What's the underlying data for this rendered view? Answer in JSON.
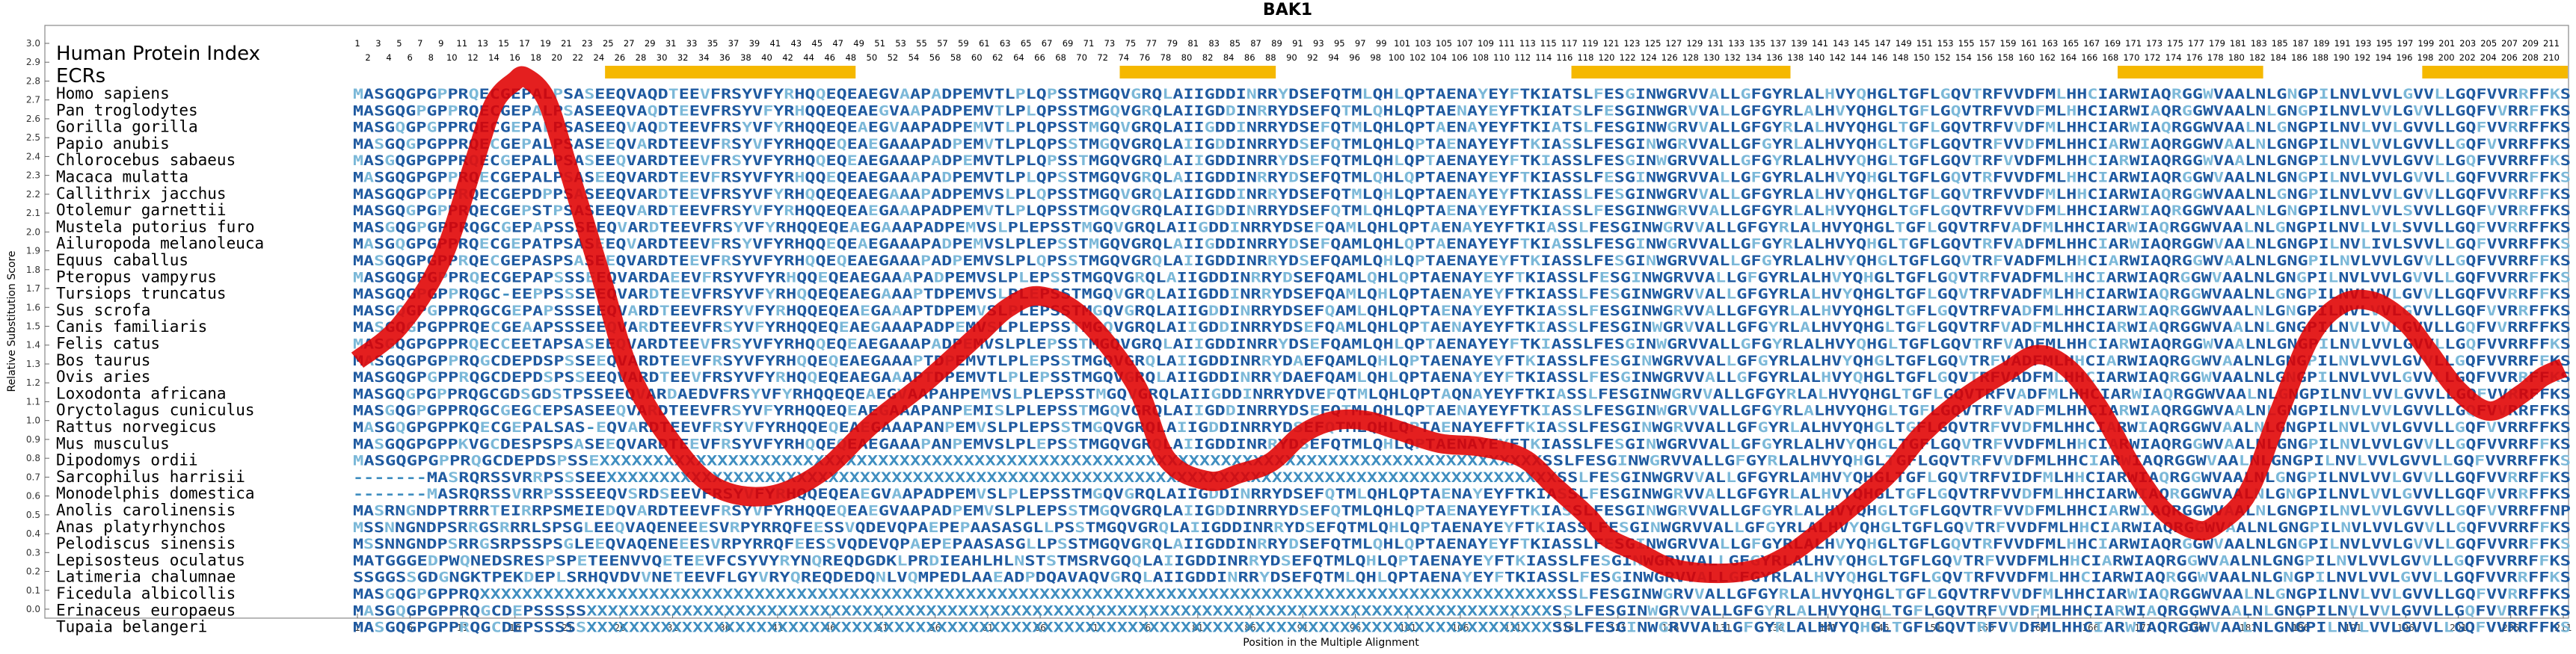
{
  "chart_data": {
    "type": "line",
    "title": "BAK1",
    "xlabel": "Position in the Multiple Alignment",
    "ylabel": "Relative Substitution Score",
    "xlim": [
      1,
      211
    ],
    "ylim": [
      0.0,
      3.0
    ],
    "yticks": [
      "0.0",
      "0.1",
      "0.2",
      "0.3",
      "0.4",
      "0.5",
      "0.6",
      "0.7",
      "0.8",
      "0.9",
      "1.0",
      "1.1",
      "1.2",
      "1.3",
      "1.4",
      "1.5",
      "1.6",
      "1.7",
      "1.8",
      "1.9",
      "2.0",
      "2.1",
      "2.2",
      "2.3",
      "2.4",
      "2.5",
      "2.6",
      "2.7",
      "2.8",
      "2.9",
      "3.0"
    ],
    "xticks": [
      1,
      6,
      11,
      16,
      21,
      26,
      31,
      36,
      41,
      46,
      51,
      56,
      61,
      66,
      71,
      76,
      81,
      86,
      91,
      96,
      101,
      106,
      111,
      116,
      121,
      126,
      131,
      136,
      141,
      146,
      151,
      156,
      161,
      166,
      171,
      176,
      181,
      186,
      191,
      196,
      201,
      206,
      211
    ],
    "human_protein_index_label": "Human Protein Index",
    "index_row_odd": [
      "1",
      "3",
      "5",
      "7",
      "9",
      "11",
      "13",
      "15",
      "17",
      "19",
      "21",
      "23",
      "25",
      "27",
      "29",
      "31",
      "33",
      "35",
      "37",
      "39",
      "41",
      "43",
      "45",
      "47",
      "49",
      "51",
      "53",
      "55",
      "57",
      "59",
      "61",
      "63",
      "65",
      "67",
      "69",
      "71",
      "73",
      "75",
      "77",
      "79",
      "81",
      "83",
      "85",
      "87",
      "89",
      "91",
      "93",
      "95",
      "97",
      "99",
      "101",
      "103",
      "105",
      "107",
      "109",
      "111",
      "113",
      "115",
      "117",
      "119",
      "121",
      "123",
      "125",
      "127",
      "129",
      "131",
      "133",
      "135",
      "137",
      "139",
      "141",
      "143",
      "145",
      "147",
      "149",
      "151",
      "153",
      "155",
      "157",
      "159",
      "161",
      "163",
      "165",
      "167",
      "169",
      "171",
      "173",
      "175",
      "177",
      "179",
      "181",
      "183",
      "185",
      "187",
      "189",
      "191",
      "193",
      "195",
      "197",
      "199",
      "201",
      "203",
      "205",
      "207",
      "209",
      "211"
    ],
    "index_row_even": [
      "2",
      "4",
      "6",
      "8",
      "10",
      "12",
      "14",
      "16",
      "18",
      "20",
      "22",
      "24",
      "26",
      "28",
      "30",
      "32",
      "34",
      "36",
      "38",
      "40",
      "42",
      "44",
      "46",
      "48",
      "50",
      "52",
      "54",
      "56",
      "58",
      "60",
      "62",
      "64",
      "66",
      "68",
      "70",
      "72",
      "74",
      "76",
      "78",
      "80",
      "82",
      "84",
      "86",
      "88",
      "90",
      "92",
      "94",
      "96",
      "98",
      "100",
      "102",
      "104",
      "106",
      "108",
      "110",
      "112",
      "114",
      "116",
      "118",
      "120",
      "122",
      "124",
      "126",
      "128",
      "130",
      "132",
      "134",
      "136",
      "138",
      "140",
      "142",
      "144",
      "146",
      "148",
      "150",
      "152",
      "154",
      "156",
      "158",
      "160",
      "162",
      "164",
      "166",
      "168",
      "170",
      "172",
      "174",
      "176",
      "178",
      "180",
      "182",
      "184",
      "186",
      "188",
      "190",
      "192",
      "194",
      "196",
      "198",
      "200",
      "202",
      "204",
      "206",
      "208",
      "210"
    ],
    "ecrs_label": "ECRs",
    "ecr_regions": [
      [
        25,
        48
      ],
      [
        74,
        88
      ],
      [
        117,
        137
      ],
      [
        169,
        182
      ],
      [
        198,
        211
      ]
    ],
    "ecr_color": "#f5b800",
    "line_color": "#e00000",
    "x": [
      1,
      5,
      9,
      12,
      14,
      16,
      17,
      19,
      21,
      24,
      27,
      31,
      35,
      40,
      45,
      50,
      55,
      60,
      63,
      66,
      70,
      75,
      78,
      82,
      85,
      88,
      91,
      94,
      97,
      100,
      104,
      108,
      112,
      115,
      118,
      120,
      123,
      126,
      130,
      134,
      137,
      140,
      144,
      147,
      150,
      154,
      158,
      161,
      164,
      167,
      170,
      173,
      176,
      178,
      181,
      184,
      187,
      190,
      193,
      196,
      198,
      201,
      204,
      207,
      209,
      211
    ],
    "y": [
      1.32,
      1.5,
      1.85,
      2.35,
      2.68,
      2.8,
      2.82,
      2.7,
      2.35,
      1.8,
      1.25,
      0.88,
      0.65,
      0.6,
      0.72,
      0.98,
      1.2,
      1.45,
      1.6,
      1.66,
      1.55,
      1.2,
      0.8,
      0.68,
      0.72,
      0.78,
      0.93,
      1.0,
      1.0,
      0.95,
      0.88,
      0.86,
      0.8,
      0.65,
      0.5,
      0.38,
      0.3,
      0.22,
      0.19,
      0.21,
      0.28,
      0.4,
      0.58,
      0.73,
      0.93,
      1.12,
      1.26,
      1.35,
      1.27,
      1.05,
      0.75,
      0.52,
      0.42,
      0.45,
      0.62,
      1.05,
      1.45,
      1.62,
      1.63,
      1.52,
      1.38,
      1.16,
      1.05,
      1.14,
      1.23,
      1.28
    ]
  },
  "species": [
    "Homo sapiens",
    "Pan troglodytes",
    "Gorilla gorilla",
    "Papio anubis",
    "Chlorocebus sabaeus",
    "Macaca mulatta",
    "Callithrix jacchus",
    "Otolemur garnettii",
    "Mustela putorius furo",
    "Ailuropoda melanoleuca",
    "Equus caballus",
    "Pteropus vampyrus",
    "Tursiops truncatus",
    "Sus scrofa",
    "Canis familiaris",
    "Felis catus",
    "Bos taurus",
    "Ovis aries",
    "Loxodonta africana",
    "Oryctolagus cuniculus",
    "Rattus norvegicus",
    "Mus musculus",
    "Dipodomys ordii",
    "Sarcophilus harrisii",
    "Monodelphis domestica",
    "Anolis carolinensis",
    "Anas platyrhynchos",
    "Pelodiscus sinensis",
    "Lepisosteus oculatus",
    "Latimeria chalumnae",
    "Ficedula albicollis",
    "Erinaceus europaeus",
    "Tupaia belangeri"
  ],
  "sequences": [
    "MASGQGPGPPRQECGEPALPSASEEQVAQDTEEVFRSYVFYRHQQEQEAEGVAAPADPEMVTLPLQPSSTMGQVGRQLAIIGDDINRRYDSEFQTMLQHLQPTAENAYEYFTKIATSLFESGINWGRVVALLGFGYRLALHVYQHGLTGFLGQVTRFVVDFMLHHCIARWIAQRGGWVAALNLGNGPILNVLVVLGVVLLGQFVVRRFFKS",
    "MASGQGPGPPRQECGEPALPSASEEQVAQDTEEVFRSYVFYRHQQEQEAEGVAAPADPEMVTLPLQPSSTMGQVGRQLAIIGDDINRRYDSEFQTMLQHLQPTAENAYEYFTKIATSLFESGINWGRVVALLGFGYRLALHVYQHGLTGFLGQVTRFVVDFMLHHCIARWIAQRGGWVAALNLGNGPILNVLVVLGVVLLGQFVVRRFFKS",
    "MASGQGPGPPRQECGEPALPSASEEQVAQDTEEVFRSYVFYRHQQEQEAEGVAAPADPEMVTLPLQPSSTMGQVGRQLAIIGDDINRRYDSEFQTMLQHLQPTAENAYEYFTKIATSLFESGINWGRVVALLGFGYRLALHVYQHGLTGFLGQVTRFVVDFMLHHCIARWIAQRGGWVAALNLGNGPILNVLVVLGVVLLGQFVVRRFFKS",
    "MASGQGPGPPRQECGEPALPSASEEQVARDTEEVFRSYVFYRHQQEQEAEGAAAPADPEMVTLPLQPSSTMGQVGRQLAIIGDDINRRYDSEFQTMLQHLQPTAENAYEYFTKIASSLFESGINWGRVVALLGFGYRLALHVYQHGLTGFLGQVTRFVVDFMLHHCIARWIAQRGGWVAALNLGNGPILNVLVVLGVVLLGQFVVRRFFKS",
    "MASGQGPGPPRQECGEPALPSASEEQVARDTEEVFRSYVFYRHQQEQEAEGAAAPADPEMVTLPLQPSSTMGQVGRQLAIIGDDINRRYDSEFQTMLQHLQPTAENAYEYFTKIASSLFESGINWGRVVALLGFGYRLALHVYQHGLTGFLGQVTRFVVDFMLHHCIARWIAQRGGWVAALNLGNGPILNVLVVLGVVLLGQFVVRRFFKS",
    "MASGQGPGPPRQECGEPALPSASEEQVARDTEEVFRSYVFYRHQQEQEAEGAAAPADPEMVTLPLQPSSTMGQVGRQLAIIGDDINRRYDSEFQTMLQHLQPTAENAYEYFTKIASSLFESGINWGRVVALLGFGYRLALHVYQHGLTGFLGQVTRFVVDFMLHHCIARWIAQRGGWVAALNLGNGPILNVLVVLGVVLLGQFVVRRFFKS",
    "MASGQGPGPPRQECGEPDPPSASEEQVARDTEEVFRSYVFYRHQQEQEAEGAAAPADPEMVSLPLQPSSTMGQVGRQLAIIGDDINRRYDSEFQTMLQHLQPTAENAYEYFTKIASSLFESGINWGRVVALLGFGYRLALHVYQHGLTGFLGQVTRFVVDFMLHHCIARWIAQRGGWVAALNLGNGPILNVLVVLGVVLLGQFVVRRFFKS",
    "MASGQGPGPPRQECGEPSTPSASEEQVARDTEEVFRSYVFYRHQQEQEAEGAAAPADPEMVTLPLQPSSTMGQVGRQLAIIGDDINRRYDSEFQTMLQHLQPTAENAYEYFTKIASSLFESGINWGRVVALLGFGYRLALHVYQHGLTGFLGQVTRFVVDFMLHHCIARWIAQRGGWVAALNLGNGPILNVLVVLSVVLLGQFVVRRFFKS",
    "MASGQGPGPPRQGCGEPAPSSSEEQVARDTEEVFRSYVFYRHQQEQEAEGAAAPADPEMVSLPLEPSSTMGQVGRQLAIIGDDINRRYDSEFQAMLQHLQPTAENAYEYFTKIASSLFESGINWGRVVALLGFGYRLALHVYQHGLTGFLGQVTRFVADFMLHHCIARWIAQRGGWVAALNLGNGPILNVLLVLSVVLLGQFVVRRFFKS",
    "MASGQGPGPPRQECGEPATPSASEEQVARDTEEVFRSYVFYRHQQEQEAEGAAAPADPEMVSLPLEPSSTMGQVGRQLAIIGDDINRRYDSEFQAMLQHLQPTAENAYEYFTKIASSLFESGINWGRVVALLGFGYRLALHVYQHGLTGFLGQVTRFVADFMLHHCIARWIAQRGGWVAALNLGNGPILNVLIVLSVVLLGQFVVRRFFKS",
    "MASGQGPGPPRQECGEPASPSASEEQVARDTEEVFRSYVFYRHQQEQEAEGAAAPADPEMVSLPLQPSSTMGQVGRQLAIIGDDINRRYDSEFQAMLQHLQPTAENAYEYFTKIASSLFESGINWGRVVALLGFGYRLALHVYQHGLTGFLGQVTRFVADFMLHHCIARWIAQRGGWVAALNLGNGPILNVLVVLGVVLLGQFVVRRFFKS",
    "MASGQGPGPPRQECGEPAPSSSEEQVARDAEEVFRSYVFYRHQQEQEAEGAAAPADPEMVSLPLEPSSTMGQVGRQLAIIGDDINRRYDSEFQAMLQHLQPTAENAYEYFTKIASSLFESGINWGRVVALLGFGYRLALHVYQHGLTGFLGQVTRFVADFMLHHCIARWIAQRGGWVAALNLGNGPILNVLVVLGVVLLGQFVVRRFFKS",
    "MASGQGPGPPRQGC-EEPPSSSEEQVARDTEEVFRSYVFYRHQQEQEAEGAAAPTDPEMVSLPLEPSSTMGQVGRQLAIIGDDINRRYDSEFQAMLQHLQPTAENAYEYFTKIASSLFESGINWGRVVALLGFGYRLALHVYQHGLTGFLGQVTRFVADFMLHHCIARWIAQRGGWVAALNLGNGPILNVLVVLGVVLLGQFVVRRFFKS",
    "MASGQGPGPPRQGCGEPAPSSSEEQVARDTEEVFRSYVFYRHQQEQEAEGAAAPTDPEMVSLPLEPSSTMGQVGRQLAIIGDDINRRYDSEFQAMLQHLQPTAENAYEYFTKIASSLFESGINWGRVVALLGFGYRLALHVYQHGLTGFLGQVTRFVADFMLHHCIARWIAQRGGWVAALNLGNGPILNVLVVLGVVLLGQFVVRRFFKS",
    "MASGQGPGPPRQECGEAAPSSSEEQVARDTEEVFRSYVFYRHQQEQEAEGAAAPADPEMVSLPLEPSSTMGQVGRQLAIIGDDINRRYDSEFQAMLQHLQPTAENAYEYFTKIASSLFESGINWGRVVALLGFGYRLALHVYQHGLTGFLGQVTRFVADFMLHHCIARWIAQRGGWVAALNLGNGPILNVLVVLGVVLLGQFVVRRFFKS",
    "MASGQGPGPPRQECCEETAPSASEEQVARDTEEVFRSYVFYRHQQEQEAEGAAAPADPEMVSLPLEPSSTMGQVGRQLAIIGDDINRRYDSEFQAMLQHLQPTAENAYEYFTKIASSLFESGINWGRVVALLGFGYRLALHVYQHGLTGFLGQVTRFVADFMLHHCIARWIAQRGGWVAALNLGNGPILNVLVVLGVVLLGQFVVRRFFKS",
    "MASGQGPGPPRQGCDEPDSPSSEEQVARDTEEVFRSYVFYRHQQEQEAEGAAAPTDPEMVTLPLEPSSTMGQVGRQLAIIGDDINRRYDAEFQAMLQHLQPTAENAYEYFTKIASSLFESGINWGRVVALLGFGYRLALHVYQHGLTGFLGQVTRFVADFMLHHCIARWIAQRGGWVAALNLGNGPILNVLVVLGVVLLGQFVVRRFFKS",
    "MASGQGPGPPRQGCDEPDSPSSEEQVARDTEEVFRSYVFYRHQQEQEAEGAAAPTDPEMVTLPLEPSSTMGQVGRQLAIIGDDINRRYDAEFQAMLQHLQPTAENAYEYFTKIASSLFESGINWGRVVALLGFGYRLALHVYQHGLTGFLGQVTRFVADFMLHHCIARWIAQRGGWVAALNLGNGPILNVLVVLGVVLLGQFVVRRFFKS",
    "MASGQGPGPPRQGCGDSGDSTPSSEEQVARDAEDVFRSYVFYRHQQEQEAEGVAAPAHPEMVSLPLEPSSTMGQVGRQLAIIGDDINRRYDVEFQTMLQHLQPTAQNAYEYFTKIASSLFESGINWGRVVALLGFGYRLALHVYQHGLTGFLGQVTRFVADFMLHHCIARWIAQRGGWVAALNLGNGPILNVLVVLGVVLLGQFVVRRFFKS",
    "MASGQGPGPPRQGCGEGCEPSASEEQVARDTEEVFRSYVFYRHQQEQEAEGAAAPANPEMISLPLEPSSTMGQVGRQLAIIGDDINRRYDSEFQTMLQHLQPTAENAYEYFTKIASSLFESGINWGRVVALLGFGYRLALHVYQHGLTGFLGQVTRFVADFMLHHCIARWIAQRGGWVAALNLGNGPILNVLVVLGVVLLGQFVVRRFFKS",
    "MASGQGPGPPKQECGEPALSAS-EQVARDTEEVFRSYVFYRHQQEQEAEGAAAPANPEMVSLPLEPSSTMGQVGRQLAIIGDDINRRYDSEFQTMLQHLQPTAENAYEFFTKIASSLFESGINWGRVVALLGFGYRLALHVYQHGLTGFLGQVTRFVVDFMLHHCIARWIAQRGGWVAALNLGNGPILNVLVVLGVVLLGQFVVRRFFKS",
    "MASGQGPGPPKVGCDESPSPSASEEQVARDTEEVFRSYVFYRHQQEQEAEGAAAPANPEMVSLPLEPSSTMGQVGRQLAIIGDDINRRYDSEFQTMLQHLQPTAENAYEYFTKIASSLFESGINWGRVVALLGFGYRLALHVYQHGLTGFLGQVTRFVVDFMLHHCIARWIAQRGGWVAALNLGNGPILNVLVVLGVVLLGQFVVRRFFKS",
    "MASGQGPGPPRQGCDEPDSPSSEXXXXXXXXXXXXXXXXXXXXXXXXXXXXXXXXXXXXXXXXXXXXXXXXXXXXXXXXXXXXXXXXXXXXXXXXXXXXXXXXXXXXXXXXSSLFESGINWGRVVALLGFGYRLALHVYQHGLTGFLGQVTRFVVDFMLHHCIARWIAQRGGWVAALNLGNGPILNVLVVLGVVLLGQFVVRRFFKS",
    "-------MASRQRSSVRRPSSSEEXXXXXXXXXXXXXXXXXXXXXXXXXXXXXXXXXXXXXXXXXXXXXXXXXXXXXXXXXXXXXXXXXXXXXXXXXXXXXXXXXXXXXXXXXXSSLFESGINWGRVVALLGFGYRLAMHVYQHGLTGFLGQVTRFVIDFMLHHCIARWIAQRGGWVAALNLGNGPILNVLVVLGVVLLGQFVVRRFFKS",
    "-------MASRQRSSVRRPSSSEEQVSRDSEEVFRSYVFYRHQQEQEAEGVAAPADPEMVSLPLEPSSTMGQVGRQLAIIGDDINRRYDSEFQTMLQHLQPTAENAYEYFTKIASSLFESGINWGRVVALLGFGYRLALHVYQHGLTGFLGQVTRFVVDFMLHHCIARWIAQRGGWVAALNLGNGPILNVLVVLGVVLLGQFVVRRFFKS",
    "MASRNGNDPTRRRTEIRRPSMEIEDQVARDTEEVFRSYVFYRHQQEQEAEGVAAPADPEMVSLPLEPSSTMGQVGRQLAIIGDDINRRYDSEFQTMLQHLQPTAENAYEYFTKIASSLFESGINWGRVVALLGFGYRLALHVYQHGLTGFLGQVTRFVVDFMLHHCIARWIAQRGGWVAALNLGNGPILNVLVVLGVVLLGQFVVRRFFNP",
    "MSSNNGNDPSRRGSRRRLSPSGLEEQVAQENEEESVRPYRRQFEESSVQDEVQPAEPEPAASASGLLPSSTMGQVGRQLAIIGDDINRRYDSEFQTMLQHLQPTAENAYEYFTKIASSLFESGINWGRVVALLGFGYRLALHVYQHGLTGFLGQVTRFVVDFMLHHCIARWIAQRGGWVAALNLGNGPILNVLVVLGVVLLGQFVVRRFFKS",
    "MSSNNGNDPSRRGSRPSSPSGLEEQVAQENEEESVRPYRRQFEESSVQDEVQPAEPEPAASASGLLPSSTMGQVGRQLAIIGDDINRRYDSEFQTMLQHLQPTAENAYEYFTKIASSLFESGINWGRVVALLGFGYRLALHVYQHGLTGFLGQVTRFVVDFMLHHCIARWIAQRGGWVAALNLGNGPILNVLVVLGVVLLGQFVVRRFFKS",
    "MATGGGEDPWQNEDSRESPSPETEENVVQETEEVFCSYVYRYNQREQDGDKLPRDIEAHLHLNSTSTMSRVGQQLAIIGDDINRRYDSEFQTMLQHLQPTAENAYEYFTKIASSLFESGINWGRVVALLGFGYRLALHVYQHGLTGFLGQVTRFVVDFMLHHCIARWIAQRGGWVAALNLGNGPILNVLVVLGVVLLGQFVVRRFFKS",
    "SSGGSSGDGNGKTPEKDEPLSRHQVDVVNETEEVFLGYVRYQREQDEDQNLVQMPEDLAAEADPDQAVAQVGRQLAIIGDDINRRYDSEFQTMLQHLQPTAENAYEYFTKIASSLFESGINWGRVVALLGFGYRLALHVYQHGLTGFLGQVTRFVVDFMLHHCIARWIAQRGGWVAALNLGNGPILNVLVVLGVVLLGQFVVRRFFKS",
    "MASGQGPGPPRQXXXXXXXXXXXXXXXXXXXXXXXXXXXXXXXXXXXXXXXXXXXXXXXXXXXXXXXXXXXXXXXXXXXXXXXXXXXXXXXXXXXXXXXXXXXXXXXXXXXXXXSSLFESGINWGRVVALLGFGYRLALHVYQHGLTGFLGQVTRFVVDFMLHHCIARWIAQRGGWVAALNLGNGPILNVLVVLGVVLLGQFVVRRFFKS",
    "MASGQGPGPPRQGCDEPSSSSSXXXXXXXXXXXXXXXXXXXXXXXXXXXXXXXXXXXXXXXXXXXXXXXXXXXXXXXXXXXXXXXXXXXXXXXXXXXXXXXXXXXXXXXXXXXSSLFESGINWGRVVALLGFGYRLALHVYQHGLTGFLGQVTRFVVDFMLHHCIARWIAQRGGWVAALNLGNGPILNVLVVLGVVLLGQFVVRRFFKS",
    "MASGQGPGPPRQGCDEPSSSSSXXXXXXXXXXXXXXXXXXXXXXXXXXXXXXXXXXXXXXXXXXXXXXXXXXXXXXXXXXXXXXXXXXXXXXXXXXXXXXXXXXXXXXXXXXXSSLFESGINWGRVVALLGFGYRLALHVYQHGLTGFLGQVTRFVVDFMLHHCIARWIAQRGGWVAALNLGNGPILNVLVVLGVVLLGQFVVRRFFKS"
  ],
  "seq_colors": [
    "#1f5aa0",
    "#3f8ec0",
    "#7bb8d8"
  ]
}
